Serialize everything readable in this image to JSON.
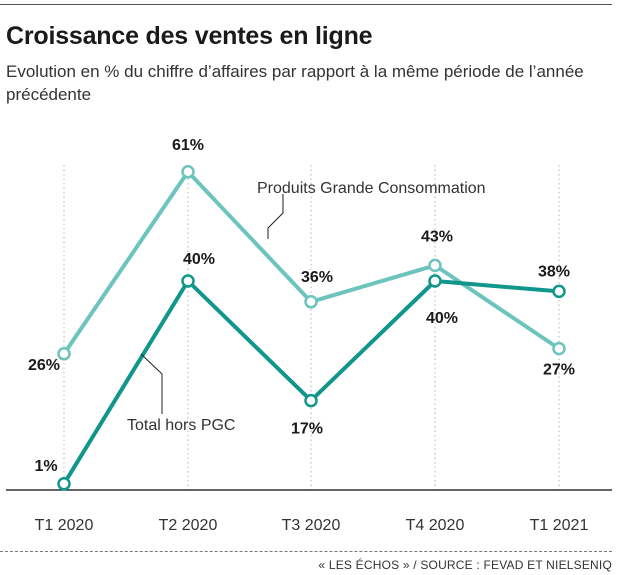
{
  "title": "Croissance des ventes en ligne",
  "subtitle": "Evolution en % du chiffre d’affaires par rapport à la même période de l’année précédente",
  "source": "« LES ÉCHOS » / SOURCE : FEVAD ET NIELSENIQ",
  "chart_data": {
    "type": "line",
    "categories": [
      "T1 2020",
      "T2 2020",
      "T3 2020",
      "T4 2020",
      "T1 2021"
    ],
    "series": [
      {
        "name": "Produits Grande Consommation",
        "values": [
          26,
          61,
          36,
          43,
          27
        ],
        "labels": [
          "26%",
          "61%",
          "36%",
          "43%",
          "27%"
        ],
        "color": "#6cc4bd"
      },
      {
        "name": "Total hors PGC",
        "values": [
          1,
          40,
          17,
          40,
          38
        ],
        "labels": [
          "1%",
          "40%",
          "17%",
          "40%",
          "38%"
        ],
        "color": "#10968a"
      }
    ],
    "ylim": [
      0,
      65
    ],
    "grid": "vertical-dotted",
    "legend": "inline-annotations"
  }
}
